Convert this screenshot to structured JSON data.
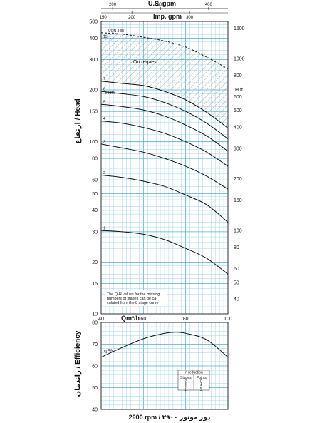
{
  "chart_data": {
    "type": "line",
    "top_axes": {
      "us_gpm": {
        "label": "U.S. gpm",
        "ticks": [
          "200",
          "300",
          "400"
        ],
        "values": [
          200,
          300,
          400
        ]
      },
      "imp_gpm": {
        "label": "Imp. gpm",
        "ticks": [
          "150",
          "200",
          "300"
        ],
        "values": [
          150,
          200,
          300
        ]
      }
    },
    "x_axis": {
      "label": "Qm³/h",
      "ticks": [
        "40",
        "60",
        "80",
        "100"
      ],
      "range": [
        40,
        100
      ],
      "scale": "linear"
    },
    "head_chart": {
      "ylabel": "ارتفاع / Head",
      "yunit_left": "H m",
      "yunit_right": "H ft",
      "yscale": "log",
      "yrange": [
        10,
        500
      ],
      "left_ticks": [
        "10",
        "15",
        "20",
        "30",
        "40",
        "50",
        "60",
        "80",
        "100",
        "150",
        "200",
        "300",
        "400",
        "500"
      ],
      "left_values": [
        10,
        15,
        20,
        30,
        40,
        50,
        60,
        80,
        100,
        150,
        200,
        300,
        400,
        500
      ],
      "right_ticks": [
        "40",
        "50",
        "60",
        "80",
        "100",
        "150",
        "200",
        "300",
        "400",
        "500",
        "600",
        "800",
        "1000",
        "1500"
      ],
      "right_values": [
        40,
        50,
        60,
        80,
        100,
        150,
        200,
        300,
        400,
        500,
        600,
        800,
        1000,
        1500
      ],
      "model_label": "UQN 345/",
      "on_request_label": "On request",
      "note": [
        "The Q-H values for the missing",
        "numbers of stages can be ca-",
        "culated from the 8 stage curve"
      ],
      "series": [
        {
          "name": "1",
          "x": [
            40,
            50,
            60,
            70,
            80,
            90,
            100
          ],
          "y": [
            30.5,
            30,
            29,
            27,
            24,
            21,
            17
          ]
        },
        {
          "name": "2",
          "x": [
            40,
            50,
            60,
            70,
            80,
            90,
            100
          ],
          "y": [
            64,
            62,
            59,
            55,
            49,
            43,
            34
          ]
        },
        {
          "name": "3",
          "x": [
            40,
            50,
            60,
            70,
            80,
            90,
            100
          ],
          "y": [
            97,
            92,
            87,
            80,
            72,
            63,
            53
          ]
        },
        {
          "name": "4",
          "x": [
            40,
            50,
            60,
            70,
            80,
            90,
            100
          ],
          "y": [
            132,
            128,
            121,
            112,
            100,
            87,
            72
          ]
        },
        {
          "name": "5",
          "x": [
            40,
            50,
            60,
            70,
            80,
            90,
            100
          ],
          "y": [
            165,
            160,
            153,
            141,
            125,
            108,
            88
          ]
        },
        {
          "name": "6",
          "x": [
            40,
            50,
            60,
            70,
            80,
            90,
            100
          ],
          "y": [
            196,
            190,
            183,
            169,
            150,
            128,
            104
          ]
        },
        {
          "name": "7",
          "x": [
            40,
            50,
            60,
            70,
            80,
            90,
            100
          ],
          "y": [
            225,
            218,
            212,
            196,
            175,
            148,
            120
          ]
        },
        {
          "name": "15",
          "x": [
            40,
            50,
            60,
            70,
            80,
            90,
            100
          ],
          "y": [
            430,
            422,
            405,
            385,
            355,
            310,
            265
          ],
          "style": "dashed"
        }
      ]
    },
    "efficiency_chart": {
      "ylabel": "راندمان / Efficiency",
      "yunit": "η %",
      "yrange": [
        40,
        80
      ],
      "ticks": [
        "40",
        "50",
        "60",
        "70",
        "80"
      ],
      "values": [
        40,
        50,
        60,
        70,
        80
      ],
      "series": [
        {
          "name": "efficiency",
          "x": [
            40,
            50,
            60,
            70,
            75,
            80,
            90,
            100
          ],
          "y": [
            64,
            68.5,
            72.5,
            75,
            75.5,
            75,
            72,
            64
          ]
        }
      ],
      "reduction_table": {
        "title": "η reduction",
        "headers": [
          "Stages",
          "Points"
        ],
        "rows": [
          [
            "2",
            "0"
          ],
          [
            "3",
            "1"
          ],
          [
            "4",
            "2"
          ],
          [
            "1",
            "3"
          ]
        ]
      }
    },
    "footer": "2900 rpm / ۲۹۰۰ دور موتور"
  }
}
